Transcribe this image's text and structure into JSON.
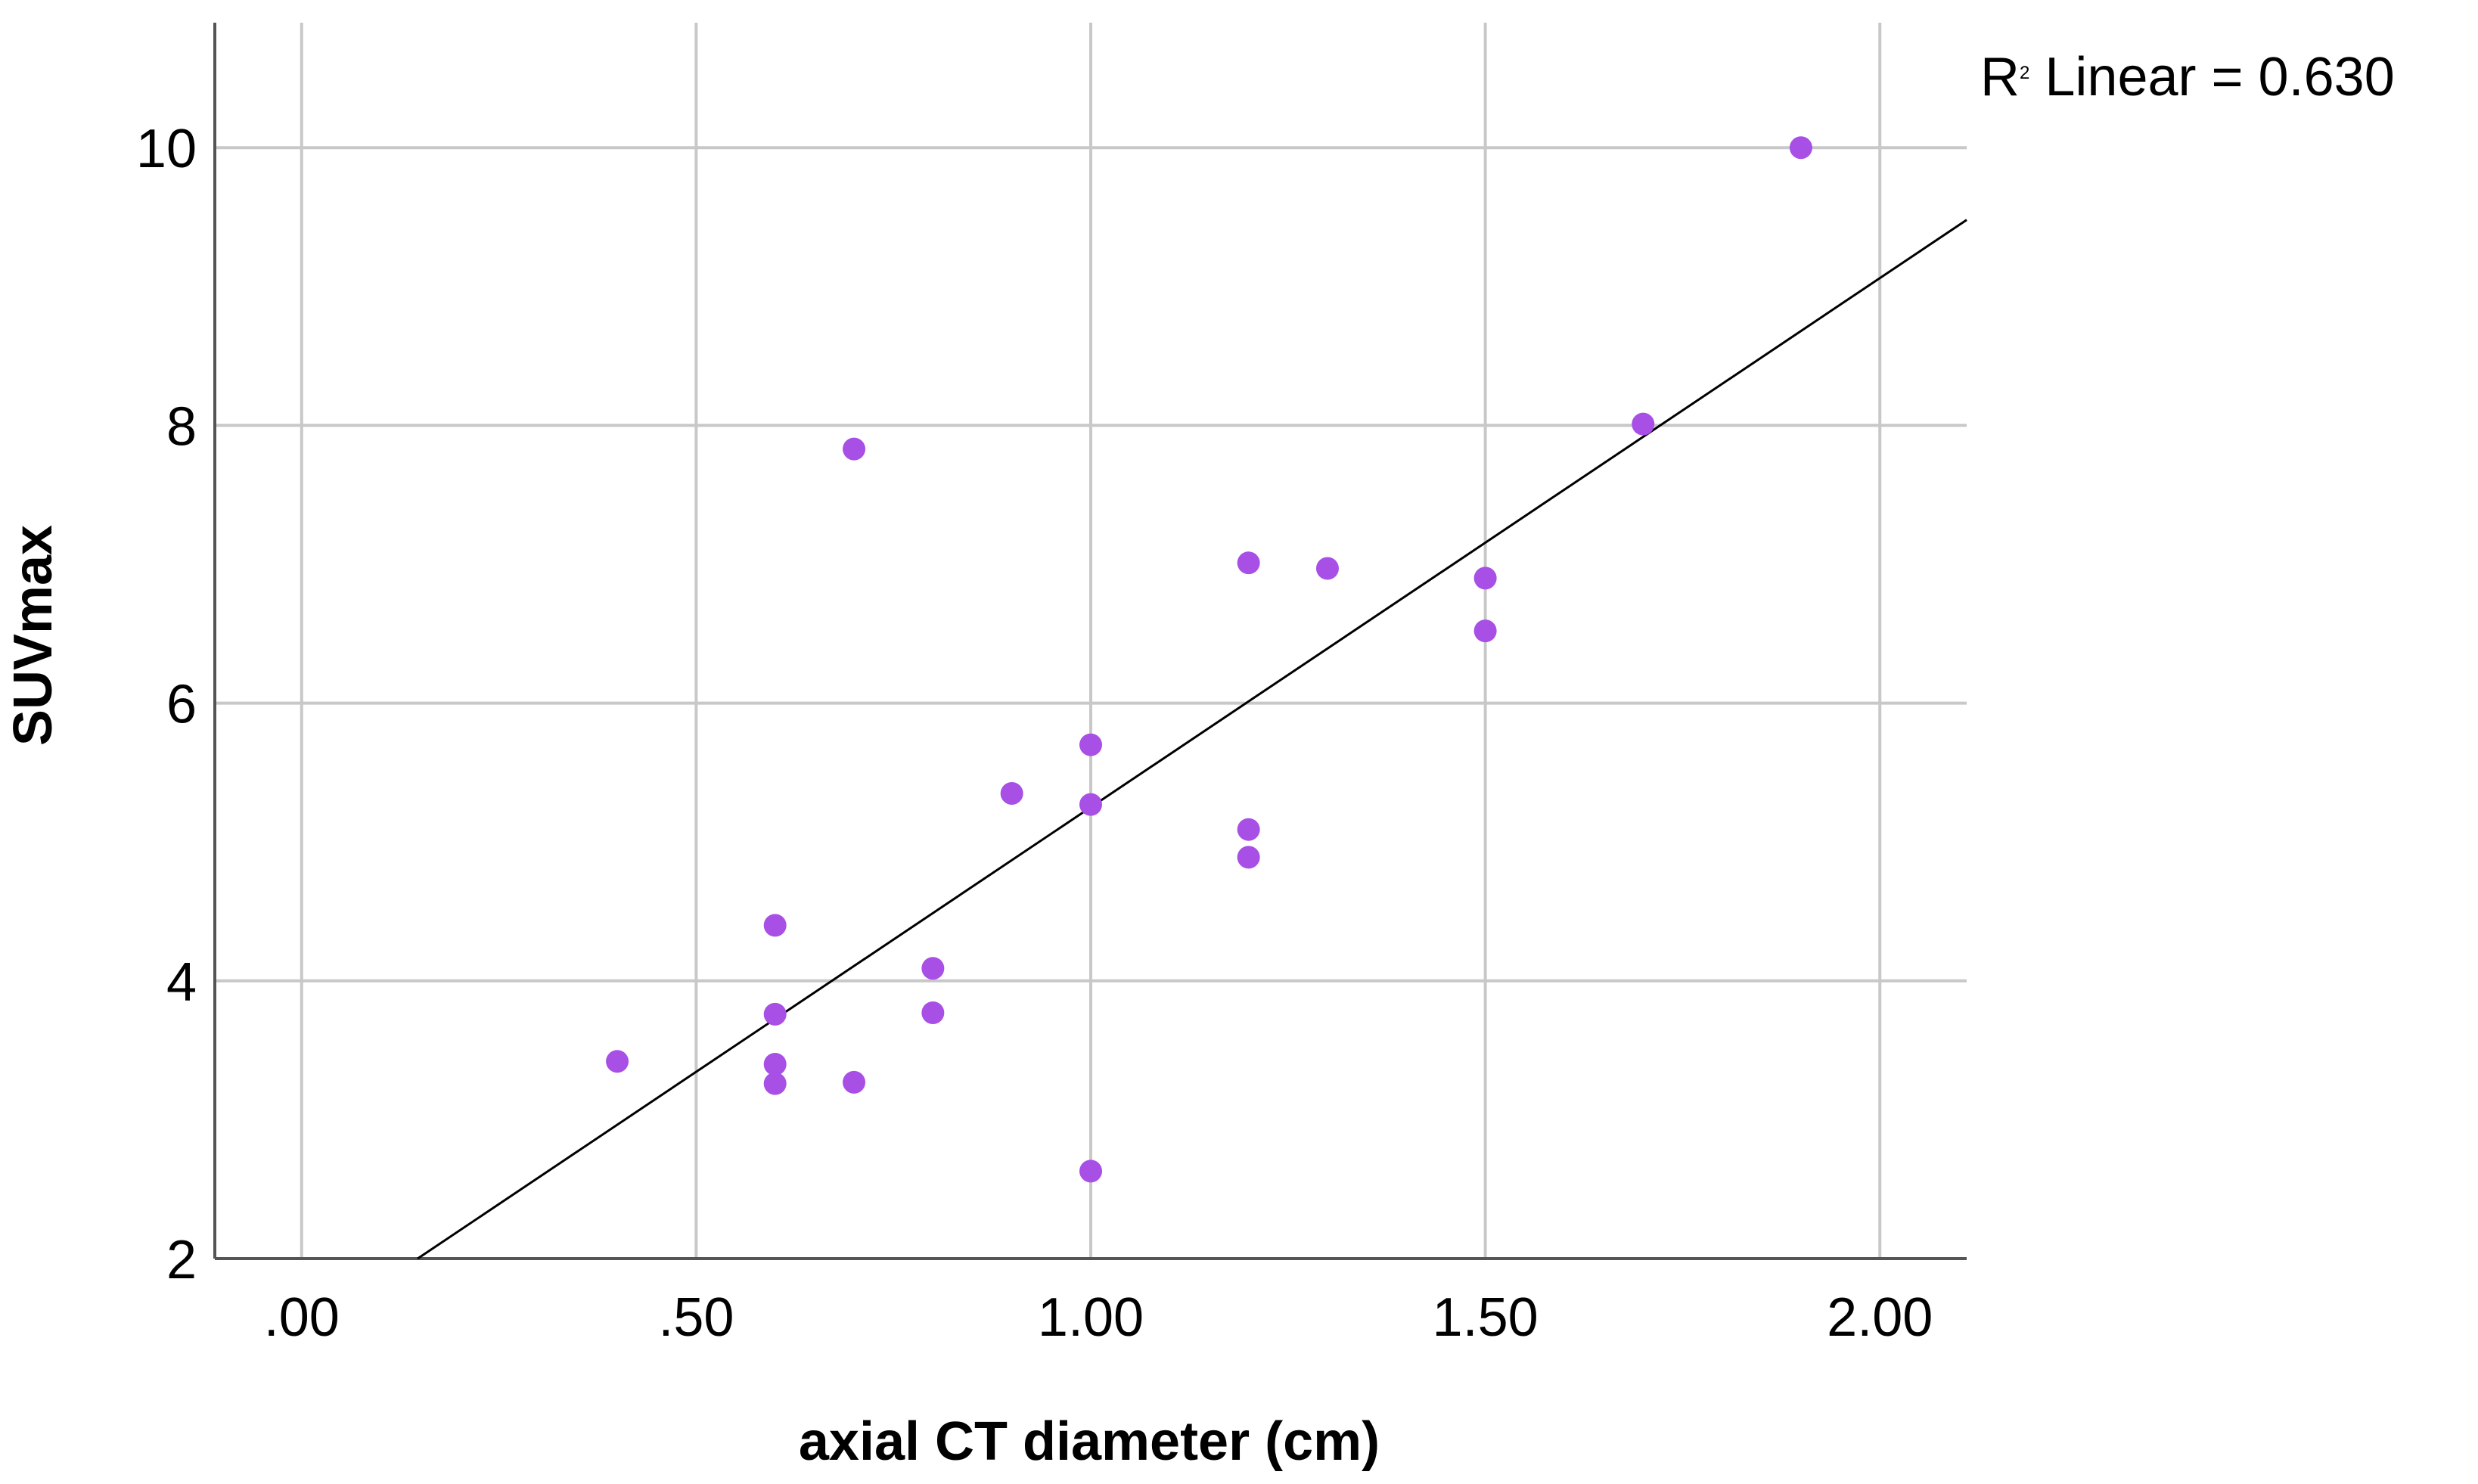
{
  "chart_data": {
    "type": "scatter",
    "title": "",
    "xlabel": "axial CT diameter (cm)",
    "ylabel": "SUVmax",
    "xlim": [
      -0.11,
      2.11
    ],
    "ylim": [
      2,
      10.9
    ],
    "x_ticks": [
      0.0,
      0.5,
      1.0,
      1.5,
      2.0
    ],
    "x_tick_labels": [
      ".00",
      ".50",
      "1.00",
      "1.50",
      "2.00"
    ],
    "y_ticks": [
      2,
      4,
      6,
      8,
      10
    ],
    "y_tick_labels": [
      "2",
      "4",
      "6",
      "8",
      "10"
    ],
    "grid": true,
    "marker_color": "#a84fe6",
    "points": [
      {
        "x": 0.4,
        "y": 3.42
      },
      {
        "x": 0.6,
        "y": 4.4
      },
      {
        "x": 0.6,
        "y": 3.76
      },
      {
        "x": 0.6,
        "y": 3.4
      },
      {
        "x": 0.6,
        "y": 3.26
      },
      {
        "x": 0.7,
        "y": 7.83
      },
      {
        "x": 0.7,
        "y": 3.27
      },
      {
        "x": 0.8,
        "y": 4.09
      },
      {
        "x": 0.8,
        "y": 3.77
      },
      {
        "x": 0.9,
        "y": 5.35
      },
      {
        "x": 1.0,
        "y": 5.7
      },
      {
        "x": 1.0,
        "y": 5.27
      },
      {
        "x": 1.0,
        "y": 2.63
      },
      {
        "x": 1.2,
        "y": 7.01
      },
      {
        "x": 1.2,
        "y": 5.09
      },
      {
        "x": 1.2,
        "y": 4.89
      },
      {
        "x": 1.3,
        "y": 6.97
      },
      {
        "x": 1.5,
        "y": 6.9
      },
      {
        "x": 1.5,
        "y": 6.52
      },
      {
        "x": 1.7,
        "y": 8.01
      },
      {
        "x": 1.9,
        "y": 10.0
      }
    ],
    "fit_line": {
      "start": {
        "x": 0.147,
        "y": 2.0
      },
      "end": {
        "x": 2.11,
        "y": 9.48
      },
      "color": "#000000"
    },
    "annotations": [
      {
        "text_r": "R",
        "text_sup": "2",
        "text_rest": "Linear = 0.630"
      }
    ]
  }
}
